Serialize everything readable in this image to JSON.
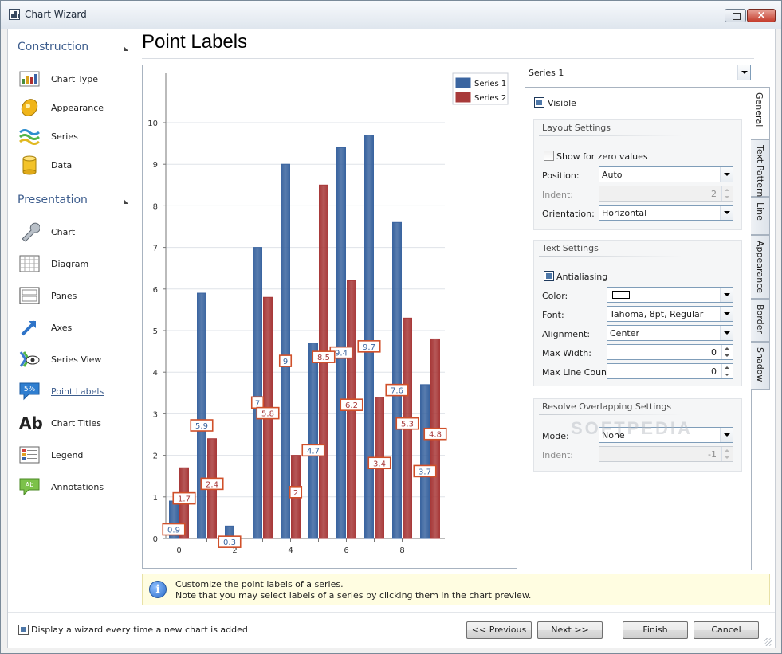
{
  "window": {
    "title": "Chart Wizard"
  },
  "sidebar": {
    "construction_title": "Construction",
    "construction_items": [
      {
        "label": "Chart Type",
        "icon": "chart-type-icon"
      },
      {
        "label": "Appearance",
        "icon": "appearance-icon"
      },
      {
        "label": "Series",
        "icon": "series-icon"
      },
      {
        "label": "Data",
        "icon": "data-icon"
      }
    ],
    "presentation_title": "Presentation",
    "presentation_items": [
      {
        "label": "Chart",
        "icon": "wrench-icon"
      },
      {
        "label": "Diagram",
        "icon": "diagram-icon"
      },
      {
        "label": "Panes",
        "icon": "panes-icon"
      },
      {
        "label": "Axes",
        "icon": "axes-icon"
      },
      {
        "label": "Series View",
        "icon": "series-view-icon"
      },
      {
        "label": "Point Labels",
        "icon": "point-labels-icon",
        "selected": true
      },
      {
        "label": "Chart Titles",
        "icon": "chart-titles-icon"
      },
      {
        "label": "Legend",
        "icon": "legend-icon"
      },
      {
        "label": "Annotations",
        "icon": "annotations-icon"
      }
    ]
  },
  "page": {
    "title": "Point Labels"
  },
  "chart_data": {
    "type": "bar",
    "x": [
      0,
      1,
      2,
      3,
      4,
      5,
      6,
      7,
      8,
      9
    ],
    "x_ticks": [
      "0",
      "2",
      "4",
      "6",
      "8"
    ],
    "y_ticks": [
      "0",
      "1",
      "2",
      "3",
      "4",
      "5",
      "6",
      "7",
      "8",
      "9",
      "10"
    ],
    "ylim": [
      0,
      10
    ],
    "grid": true,
    "legend_position": "top-right",
    "series": [
      {
        "name": "Series 1",
        "color": "#3b65a0",
        "values": [
          0.9,
          5.9,
          0.3,
          7,
          9,
          4.7,
          9.4,
          9.7,
          7.6,
          3.7
        ],
        "labels": [
          "0.9",
          "5.9",
          "0.3",
          "7",
          "9",
          "4.7",
          "9.4",
          "9.7",
          "7.6",
          "3.7"
        ]
      },
      {
        "name": "Series 2",
        "color": "#a83a3a",
        "values": [
          1.7,
          2.4,
          null,
          5.8,
          2,
          8.5,
          6.2,
          3.4,
          5.3,
          4.8
        ],
        "labels": [
          "1.7",
          "2.4",
          "",
          "5.8",
          "2",
          "8.5",
          "6.2",
          "3.4",
          "5.3",
          "4.8"
        ]
      }
    ]
  },
  "props": {
    "series_select": "Series 1",
    "tabs": [
      "General",
      "Text Pattern",
      "Line",
      "Appearance",
      "Border",
      "Shadow"
    ],
    "visible_label": "Visible",
    "visible_checked": true,
    "layout": {
      "title": "Layout Settings",
      "show_zero_label": "Show for zero values",
      "show_zero_checked": false,
      "position_label": "Position:",
      "position_value": "Auto",
      "indent_label": "Indent:",
      "indent_value": "2",
      "orientation_label": "Orientation:",
      "orientation_value": "Horizontal"
    },
    "text": {
      "title": "Text Settings",
      "antialiasing_label": "Antialiasing",
      "antialiasing_checked": true,
      "color_label": "Color:",
      "color_value": "#ffffff",
      "font_label": "Font:",
      "font_value": "Tahoma, 8pt, Regular",
      "alignment_label": "Alignment:",
      "alignment_value": "Center",
      "max_width_label": "Max Width:",
      "max_width_value": "0",
      "max_line_label": "Max Line Count:",
      "max_line_value": "0"
    },
    "overlap": {
      "title": "Resolve Overlapping Settings",
      "mode_label": "Mode:",
      "mode_value": "None",
      "indent_label": "Indent:",
      "indent_value": "-1"
    }
  },
  "watermark": "SOFTPEDIA",
  "info": {
    "icon": "info-icon",
    "line1": "Customize the point labels of a series.",
    "line2": "Note that you may select labels of a series by clicking them in the chart preview."
  },
  "footer": {
    "wizard_checkbox_label": "Display a wizard every time a new chart is added",
    "wizard_checked": true,
    "previous": "<< Previous",
    "next": "Next >>",
    "finish": "Finish",
    "cancel": "Cancel"
  }
}
